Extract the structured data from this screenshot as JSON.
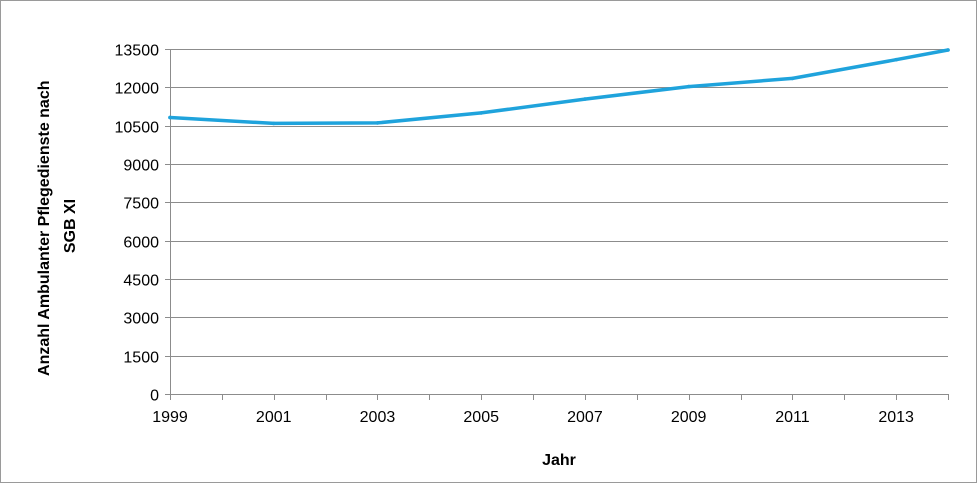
{
  "chart_data": {
    "type": "line",
    "title": "",
    "xlabel": "Jahr",
    "ylabel_lines": [
      "Anzahl Ambulanter Pflegedienste nach",
      "SGB XI"
    ],
    "x": [
      1999,
      2001,
      2003,
      2005,
      2007,
      2009,
      2011,
      2013,
      2014
    ],
    "x_tick_labels": [
      "1999",
      "2001",
      "2003",
      "2005",
      "2007",
      "2009",
      "2011",
      "2013"
    ],
    "xlim": [
      1999,
      2014
    ],
    "ylim": [
      0,
      13500
    ],
    "y_ticks": [
      0,
      1500,
      3000,
      4500,
      6000,
      7500,
      9000,
      10500,
      12000,
      13500
    ],
    "y_tick_labels": [
      "0",
      "1500",
      "3000",
      "4500",
      "6000",
      "7500",
      "9000",
      "10500",
      "12000",
      "13500"
    ],
    "grid": true,
    "legend": "none",
    "series": [
      {
        "values": [
          10820,
          10590,
          10610,
          11000,
          11540,
          12030,
          12350,
          13080,
          13460
        ],
        "color": "#1fa3dc"
      }
    ]
  }
}
